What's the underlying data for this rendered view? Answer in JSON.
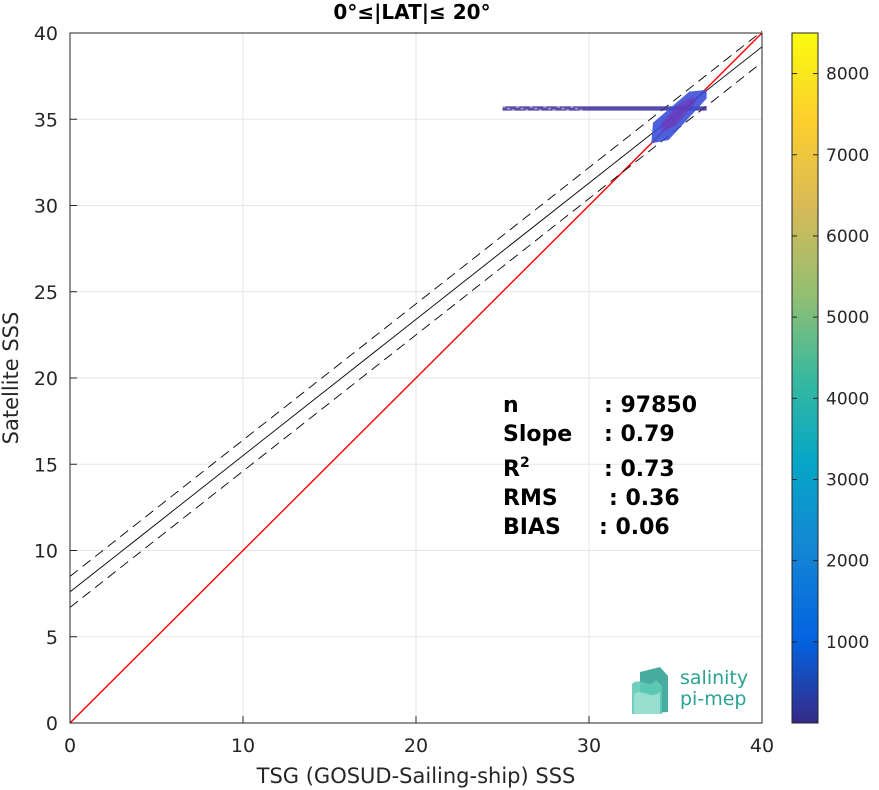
{
  "chart_data": {
    "type": "heatmap",
    "title": "0°≤|LAT|≤ 20°",
    "xlabel": "TSG (GOSUD-Sailing-ship) SSS",
    "ylabel": "Satellite SSS",
    "xlim": [
      0,
      40
    ],
    "ylim": [
      0,
      40
    ],
    "x_ticks": [
      0,
      10,
      20,
      30,
      40
    ],
    "y_ticks": [
      0,
      5,
      10,
      15,
      20,
      25,
      30,
      35,
      40
    ],
    "grid": true,
    "lines": {
      "identity": {
        "slope": 1,
        "intercept": 0,
        "color": "#ff0000",
        "style": "solid"
      },
      "fit": {
        "slope": 0.79,
        "intercept": 7.6,
        "color": "#000000",
        "style": "solid"
      },
      "fit_upper": {
        "slope": 0.79,
        "intercept": 8.5,
        "color": "#000000",
        "style": "dashed"
      },
      "fit_lower": {
        "slope": 0.79,
        "intercept": 6.7,
        "color": "#000000",
        "style": "dashed"
      }
    },
    "density_clusters": [
      {
        "x_range": [
          25.0,
          36.8
        ],
        "y_range": [
          35.5,
          35.75
        ],
        "level": "low"
      },
      {
        "x_range": [
          33.5,
          36.8
        ],
        "y_range": [
          33.6,
          36.6
        ],
        "level": "medium"
      },
      {
        "x_range": [
          34.0,
          36.2
        ],
        "y_range": [
          34.2,
          36.3
        ],
        "level": "high"
      }
    ],
    "colorbar": {
      "ticks": [
        1000,
        2000,
        3000,
        4000,
        5000,
        6000,
        7000,
        8000
      ],
      "range": [
        0,
        8500
      ],
      "colormap": "parula"
    },
    "stats": [
      {
        "label": "n",
        "value": ": 97850"
      },
      {
        "label": "Slope",
        "value": ": 0.79"
      },
      {
        "label": "R",
        "sup": "2",
        "value": ": 0.73"
      },
      {
        "label": "RMS",
        "value": ": 0.36"
      },
      {
        "label": "BIAS",
        "value": ": 0.06"
      }
    ]
  },
  "logo": {
    "line1": "salinity",
    "line2": "pi-mep"
  }
}
